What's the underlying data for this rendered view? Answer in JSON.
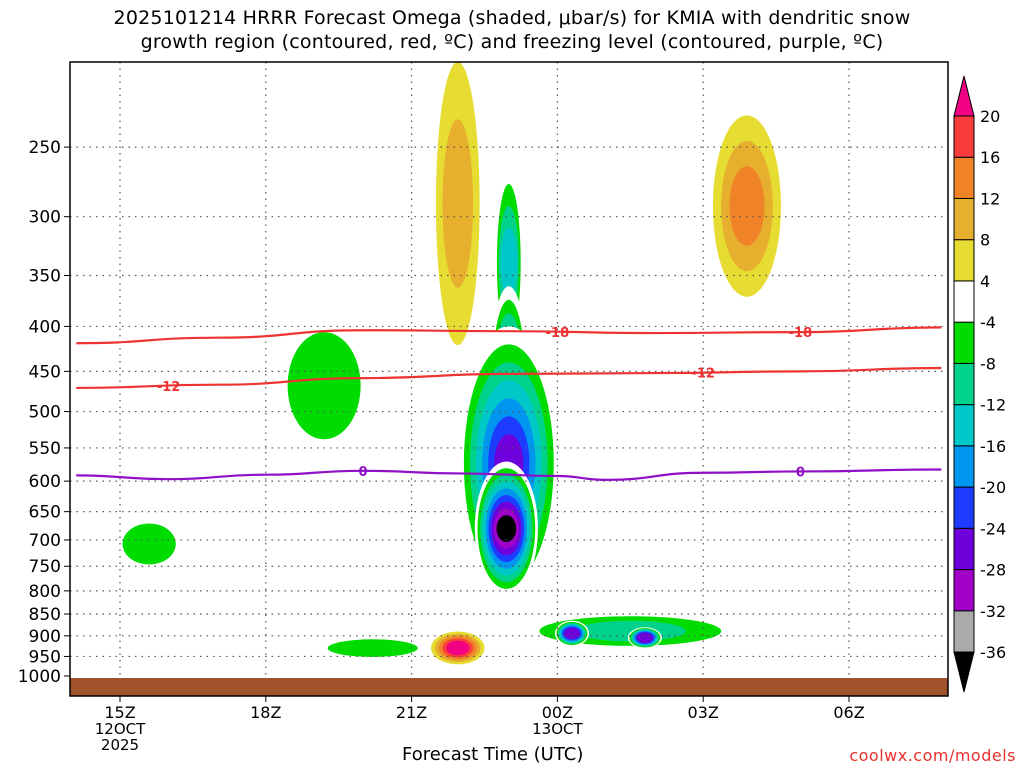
{
  "title_line1": "2025101214 HRRR Forecast Omega (shaded, μbar/s) for KMIA with dendritic snow",
  "title_line2": "growth region (contoured, red, ºC) and freezing level (contoured, purple, ºC)",
  "credit": "coolwx.com/models",
  "chart_data": {
    "type": "heatmap",
    "title": "2025101214 HRRR Forecast Omega (shaded, μbar/s) for KMIA with dendritic snow growth region (contoured, red, ºC) and freezing level (contoured, purple, ºC)",
    "xlabel": "Forecast Time (UTC)",
    "ylabel": "",
    "x_ticks": [
      {
        "hour": 1,
        "label": "15Z",
        "sub": [
          "12OCT",
          "2025"
        ]
      },
      {
        "hour": 4,
        "label": "18Z",
        "sub": []
      },
      {
        "hour": 7,
        "label": "21Z",
        "sub": []
      },
      {
        "hour": 10,
        "label": "00Z",
        "sub": [
          "13OCT"
        ]
      },
      {
        "hour": 13,
        "label": "03Z",
        "sub": []
      },
      {
        "hour": 16,
        "label": "06Z",
        "sub": []
      }
    ],
    "xlim_hours": [
      0.1,
      17.9
    ],
    "y_ticks": [
      250,
      300,
      350,
      400,
      450,
      500,
      550,
      600,
      650,
      700,
      750,
      800,
      850,
      900,
      950,
      1000
    ],
    "ylim_hpa": [
      200,
      1000
    ],
    "ground_pressure_hpa": 1013,
    "colorbar": {
      "colors": [
        "#000000",
        "#aaaaaa",
        "#a000c8",
        "#6e00dc",
        "#1e3cff",
        "#0096f0",
        "#00c8c8",
        "#00d28c",
        "#00dc00",
        "#ffffff",
        "#e6dc32",
        "#e6af2d",
        "#f08228",
        "#fa3c3c",
        "#f00082"
      ],
      "labels": [
        "-36",
        "-32",
        "-28",
        "-24",
        "-20",
        "-16",
        "-12",
        "-8",
        "-4",
        "4",
        "8",
        "12",
        "16",
        "20"
      ],
      "ticks": [
        -36,
        -32,
        -28,
        -24,
        -20,
        -16,
        -12,
        -8,
        -4,
        4,
        8,
        12,
        16,
        20
      ]
    },
    "features": [
      {
        "name": "updraft-core",
        "level": -36,
        "center": [
          8.95,
          690
        ],
        "radius": [
          0.65,
          120
        ]
      },
      {
        "name": "ascent-column",
        "level": -28,
        "center": [
          9.0,
          610
        ],
        "radius": [
          1.05,
          210
        ]
      },
      {
        "name": "ascent-tower",
        "level": -24,
        "center": [
          9.0,
          470
        ],
        "radius": [
          0.38,
          110
        ]
      },
      {
        "name": "ascent-tower-upper",
        "level": -16,
        "center": [
          9.0,
          350
        ],
        "radius": [
          0.28,
          90
        ]
      },
      {
        "name": "low-ascent-band",
        "level": -12,
        "center": [
          11.5,
          890
        ],
        "radius": [
          2.6,
          45
        ]
      },
      {
        "name": "low-ascent-core",
        "level": -28,
        "center": [
          10.3,
          895
        ],
        "radius": [
          0.35,
          30
        ]
      },
      {
        "name": "low-ascent-core-2",
        "level": -28,
        "center": [
          11.8,
          905
        ],
        "radius": [
          0.35,
          25
        ]
      },
      {
        "name": "low-ascent-west",
        "level": -8,
        "center": [
          6.2,
          930
        ],
        "radius": [
          1.5,
          30
        ]
      },
      {
        "name": "descent-lowlevel",
        "level": 20,
        "center": [
          7.95,
          930
        ],
        "radius": [
          0.55,
          40
        ]
      },
      {
        "name": "descent-plume-upper",
        "level": 8,
        "center": [
          7.95,
          300
        ],
        "radius": [
          0.45,
          120
        ]
      },
      {
        "name": "descent-east",
        "level": 12,
        "center": [
          13.9,
          300
        ],
        "radius": [
          0.7,
          70
        ]
      },
      {
        "name": "ascent-west",
        "level": -8,
        "center": [
          5.2,
          480
        ],
        "radius": [
          1.2,
          110
        ]
      },
      {
        "name": "ascent-far-west",
        "level": -8,
        "center": [
          1.6,
          710
        ],
        "radius": [
          0.85,
          60
        ]
      }
    ],
    "contours": [
      {
        "name": "-18",
        "color": "#ee3333",
        "label": "-18",
        "values_hpa": [
          [
            0.1,
            418
          ],
          [
            3.0,
            412
          ],
          [
            6.0,
            404
          ],
          [
            9.0,
            405
          ],
          [
            12.0,
            407
          ],
          [
            15.0,
            406
          ],
          [
            17.9,
            401
          ]
        ]
      },
      {
        "name": "-12",
        "color": "#ee3333",
        "label": "-12",
        "values_hpa": [
          [
            0.1,
            470
          ],
          [
            3.0,
            466
          ],
          [
            6.0,
            458
          ],
          [
            9.0,
            453
          ],
          [
            12.0,
            452
          ],
          [
            15.0,
            450
          ],
          [
            17.9,
            446
          ]
        ]
      },
      {
        "name": "0",
        "color": "#9010c8",
        "label": "0",
        "values_hpa": [
          [
            0.1,
            591
          ],
          [
            2.0,
            597
          ],
          [
            4.0,
            590
          ],
          [
            6.0,
            584
          ],
          [
            8.0,
            588
          ],
          [
            10.0,
            592
          ],
          [
            11.0,
            598
          ],
          [
            13.0,
            587
          ],
          [
            15.0,
            585
          ],
          [
            17.9,
            582
          ]
        ]
      }
    ]
  }
}
